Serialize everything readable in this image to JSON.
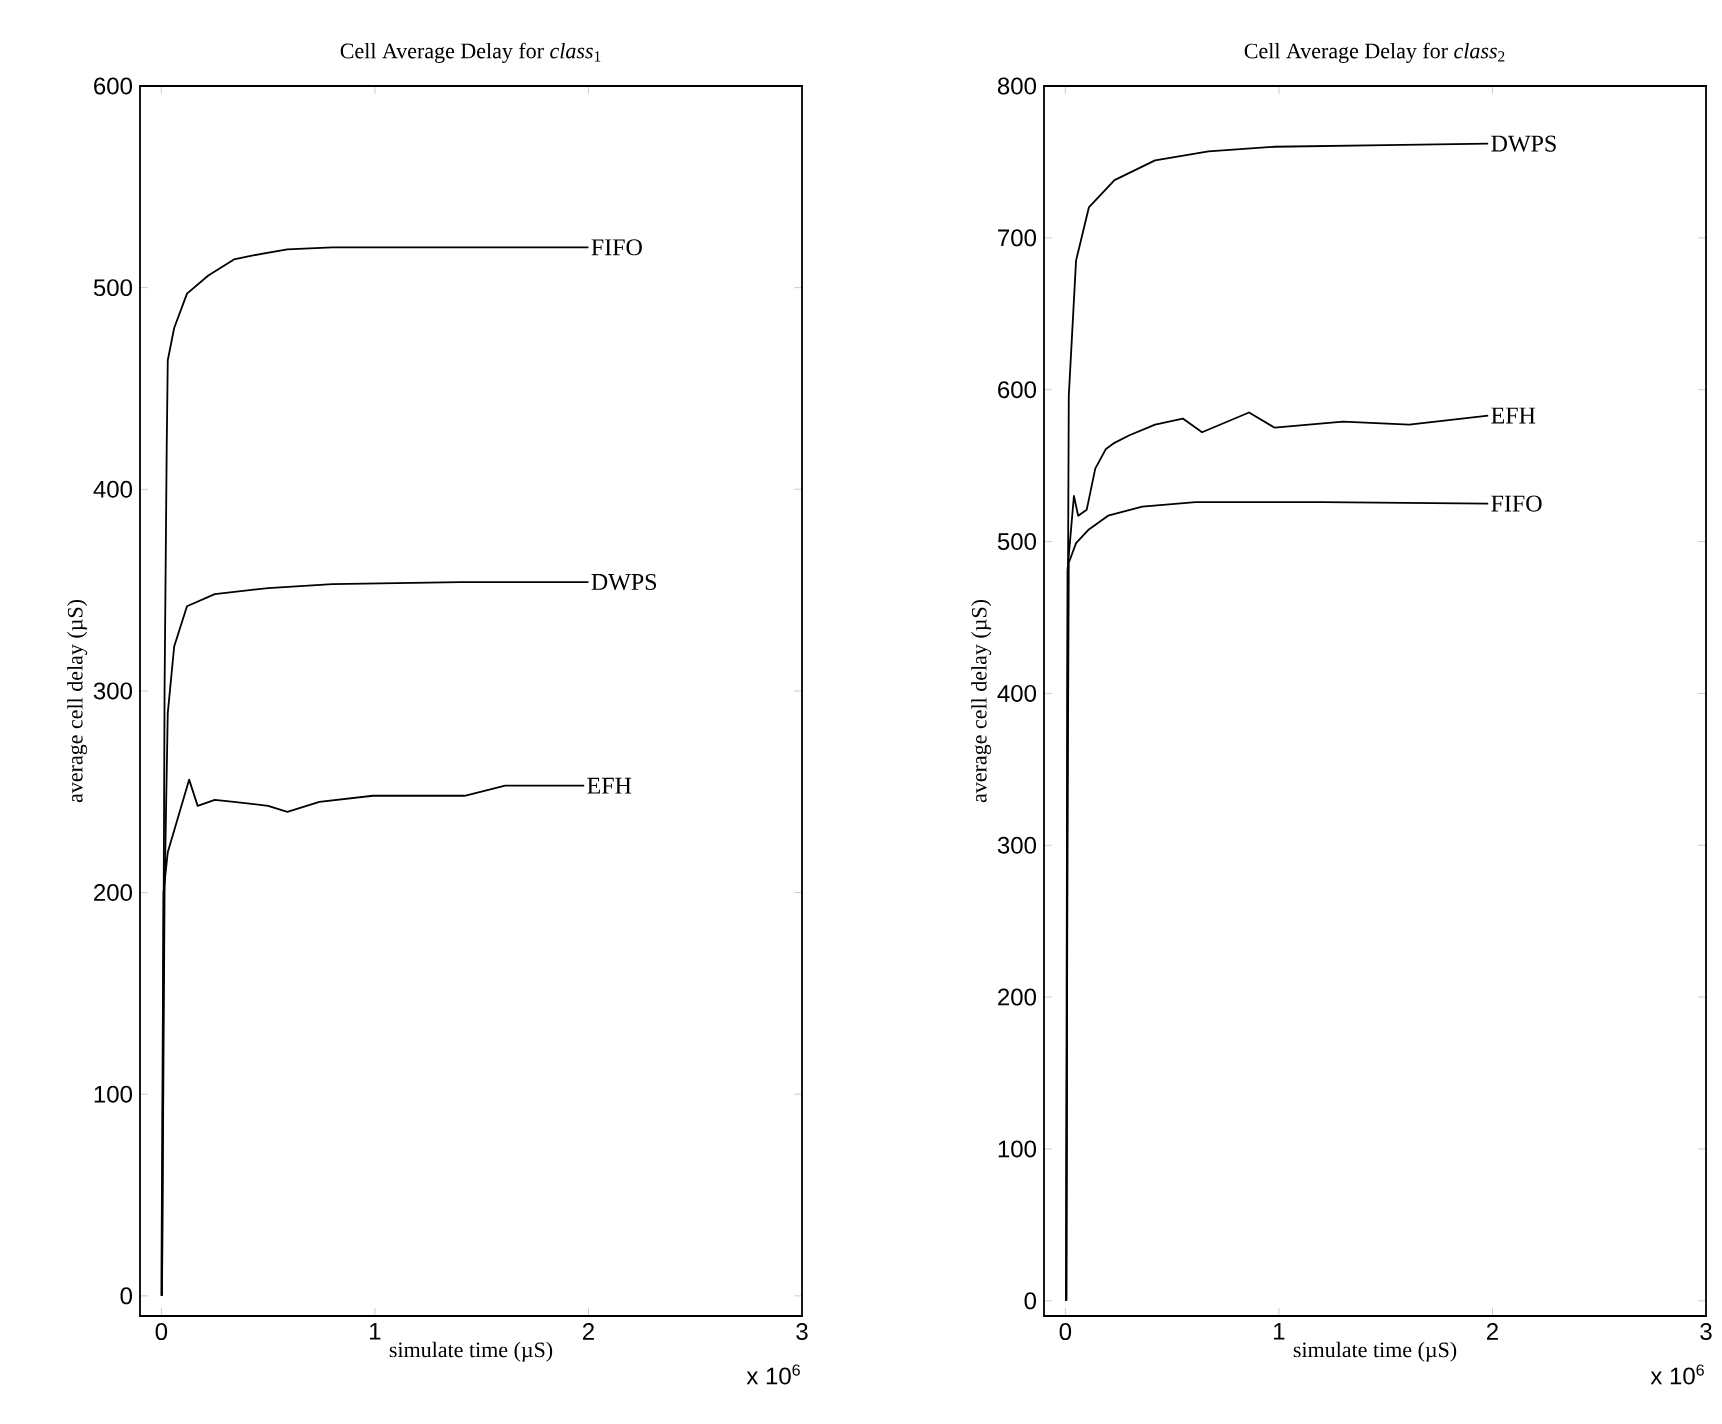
{
  "chart_data": [
    {
      "type": "line",
      "title": "Cell Average Delay for *class*$_{1}$",
      "xlabel": "simulate time (µS)",
      "ylabel": "average cell delay (µS)",
      "xlim": [
        -0.1,
        3
      ],
      "ylim": [
        -10,
        600
      ],
      "xticks": [
        0,
        1,
        2,
        3
      ],
      "yticks": [
        0,
        100,
        200,
        300,
        400,
        500,
        600
      ],
      "grid": false,
      "annotations": [
        "x 10$^{6}$"
      ],
      "series": [
        {
          "name": "FIFO",
          "color": "#000000",
          "x": [
            0.003,
            0.015,
            0.025,
            0.03,
            0.06,
            0.12,
            0.22,
            0.34,
            0.43,
            0.59,
            0.8,
            1.2,
            1.6,
            2.0
          ],
          "values": [
            0,
            300,
            420,
            464,
            480,
            497,
            506,
            514,
            516,
            519,
            520,
            520,
            520,
            520
          ]
        },
        {
          "name": "DWPS",
          "color": "#000000",
          "x": [
            0.003,
            0.015,
            0.03,
            0.06,
            0.12,
            0.25,
            0.5,
            0.8,
            1.4,
            2.0
          ],
          "values": [
            0,
            200,
            289,
            322,
            342,
            348,
            351,
            353,
            354,
            354
          ]
        },
        {
          "name": "EFH",
          "color": "#000000",
          "x": [
            0.0,
            0.01,
            0.03,
            0.08,
            0.13,
            0.17,
            0.25,
            0.34,
            0.5,
            0.59,
            0.74,
            0.99,
            1.42,
            1.61,
            1.98
          ],
          "values": [
            0,
            200,
            220,
            238,
            256,
            243,
            246,
            245,
            243,
            240,
            245,
            248,
            248,
            253,
            253
          ]
        }
      ]
    },
    {
      "type": "line",
      "title": "Cell Average Delay for *class*$_{2}$",
      "xlabel": "simulate time (µS)",
      "ylabel": "average cell delay (µS)",
      "xlim": [
        -0.1,
        3
      ],
      "ylim": [
        -10,
        800
      ],
      "xticks": [
        0,
        1,
        2,
        3
      ],
      "yticks": [
        0,
        100,
        200,
        300,
        400,
        500,
        600,
        700,
        800
      ],
      "grid": false,
      "annotations": [
        "x 10$^{6}$"
      ],
      "series": [
        {
          "name": "DWPS",
          "color": "#000000",
          "x": [
            0.005,
            0.01,
            0.016,
            0.05,
            0.11,
            0.23,
            0.42,
            0.67,
            0.98,
            1.5,
            1.98
          ],
          "values": [
            0,
            400,
            596,
            685,
            720,
            738,
            751,
            757,
            760,
            761,
            762
          ]
        },
        {
          "name": "EFH",
          "color": "#000000",
          "x": [
            0.003,
            0.008,
            0.01,
            0.04,
            0.06,
            0.1,
            0.14,
            0.19,
            0.23,
            0.3,
            0.42,
            0.55,
            0.64,
            0.86,
            0.98,
            1.3,
            1.61,
            1.98
          ],
          "values": [
            0,
            350,
            481,
            530,
            517,
            521,
            548,
            561,
            565,
            570,
            577,
            581,
            572,
            585,
            575,
            579,
            577,
            583
          ]
        },
        {
          "name": "FIFO",
          "color": "#000000",
          "x": [
            0.004,
            0.01,
            0.016,
            0.05,
            0.11,
            0.2,
            0.36,
            0.61,
            1.2,
            1.98
          ],
          "values": [
            0,
            300,
            486,
            499,
            508,
            517,
            523,
            526,
            526,
            525
          ]
        }
      ]
    }
  ]
}
